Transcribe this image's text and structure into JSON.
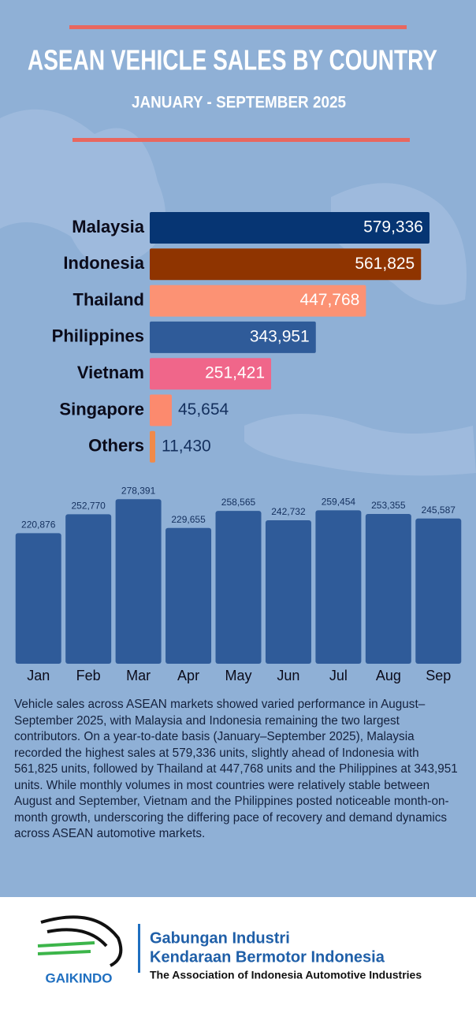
{
  "header": {
    "title": "ASEAN VEHICLE SALES BY COUNTRY",
    "subtitle": "JANUARY - SEPTEMBER 2025"
  },
  "chart_data": [
    {
      "type": "bar",
      "orientation": "horizontal",
      "categories": [
        "Malaysia",
        "Indonesia",
        "Thailand",
        "Philippines",
        "Vietnam",
        "Singapore",
        "Others"
      ],
      "values": [
        579336,
        561825,
        447768,
        343951,
        251421,
        45654,
        11430
      ],
      "value_labels": [
        "579,336",
        "561,825",
        "447,768",
        "343,951",
        "251,421",
        "45,654",
        "11,430"
      ],
      "colors": [
        "#063573",
        "#8f3400",
        "#fc9274",
        "#2f5b99",
        "#f0668a",
        "#fc8a6e",
        "#f08a4a"
      ],
      "xlim": [
        0,
        580000
      ]
    },
    {
      "type": "bar",
      "categories": [
        "Jan",
        "Feb",
        "Mar",
        "Apr",
        "May",
        "Jun",
        "Jul",
        "Aug",
        "Sep"
      ],
      "values": [
        220876,
        252770,
        278391,
        229655,
        258565,
        242732,
        259454,
        253355,
        245587
      ],
      "value_labels": [
        "220,876",
        "252,770",
        "278,391",
        "229,655",
        "258,565",
        "242,732",
        "259,454",
        "253,355",
        "245,587"
      ],
      "color": "#2f5b99",
      "ylim": [
        0,
        280000
      ]
    }
  ],
  "body": {
    "text": "Vehicle sales across ASEAN markets showed varied performance in August–September 2025, with Malaysia and Indonesia remaining the two largest contributors. On a year-to-date basis (January–September 2025), Malaysia recorded the highest sales at 579,336 units, slightly ahead of Indonesia with 561,825 units, followed by Thailand at 447,768 units and the Philippines at 343,951 units. While monthly volumes in most countries were relatively stable between August and September, Vietnam and the Philippines posted noticeable month-on-month growth, underscoring the differing pace of recovery and demand dynamics across ASEAN automotive markets."
  },
  "footer": {
    "logo": "GAIKINDO",
    "name_line1": "Gabungan Industri",
    "name_line2": "Kendaraan Bermotor Indonesia",
    "tagline": "The Association of Indonesia Automotive Industries"
  }
}
